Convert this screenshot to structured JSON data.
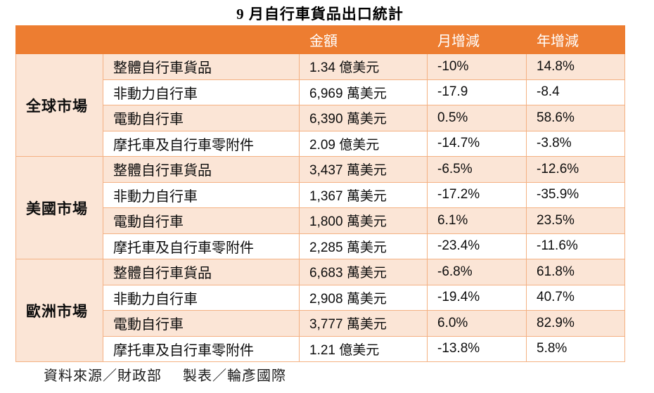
{
  "title": "9 月自行車貨品出口統計",
  "footer": {
    "source": "資料來源／財政部",
    "credit": "製表／輪彥國際"
  },
  "colors": {
    "header_bg": "#ED7D31",
    "stripe_bg": "#FBE5D6",
    "border": "#F4B183",
    "header_text": "#FFFFFF",
    "body_text": "#0D0D0D"
  },
  "chart_data": {
    "type": "table",
    "title": "9 月自行車貨品出口統計",
    "headers": {
      "market": "",
      "category": "",
      "amount": "金額",
      "mom": "月增減",
      "yoy": "年增減"
    },
    "groups": [
      {
        "market": "全球市場",
        "rows": [
          {
            "category": "整體自行車貨品",
            "amount": "1.34 億美元",
            "mom": "-10%",
            "yoy": "14.8%"
          },
          {
            "category": "非動力自行車",
            "amount": "6,969 萬美元",
            "mom": "-17.9",
            "yoy": "-8.4"
          },
          {
            "category": "電動自行車",
            "amount": "6,390 萬美元",
            "mom": "0.5%",
            "yoy": "58.6%"
          },
          {
            "category": "摩托車及自行車零附件",
            "amount": "2.09 億美元",
            "mom": "-14.7%",
            "yoy": "-3.8%"
          }
        ]
      },
      {
        "market": "美國市場",
        "rows": [
          {
            "category": "整體自行車貨品",
            "amount": "3,437 萬美元",
            "mom": "-6.5%",
            "yoy": "-12.6%"
          },
          {
            "category": "非動力自行車",
            "amount": "1,367 萬美元",
            "mom": "-17.2%",
            "yoy": "-35.9%"
          },
          {
            "category": "電動自行車",
            "amount": "1,800 萬美元",
            "mom": "6.1%",
            "yoy": "23.5%"
          },
          {
            "category": "摩托車及自行車零附件",
            "amount": "2,285 萬美元",
            "mom": "-23.4%",
            "yoy": "-11.6%"
          }
        ]
      },
      {
        "market": "歐洲市場",
        "rows": [
          {
            "category": "整體自行車貨品",
            "amount": "6,683 萬美元",
            "mom": "-6.8%",
            "yoy": "61.8%"
          },
          {
            "category": "非動力自行車",
            "amount": "2,908 萬美元",
            "mom": "-19.4%",
            "yoy": "40.7%"
          },
          {
            "category": "電動自行車",
            "amount": "3,777 萬美元",
            "mom": "6.0%",
            "yoy": "82.9%"
          },
          {
            "category": "摩托車及自行車零附件",
            "amount": "1.21 億美元",
            "mom": "-13.8%",
            "yoy": "5.8%"
          }
        ]
      }
    ]
  }
}
